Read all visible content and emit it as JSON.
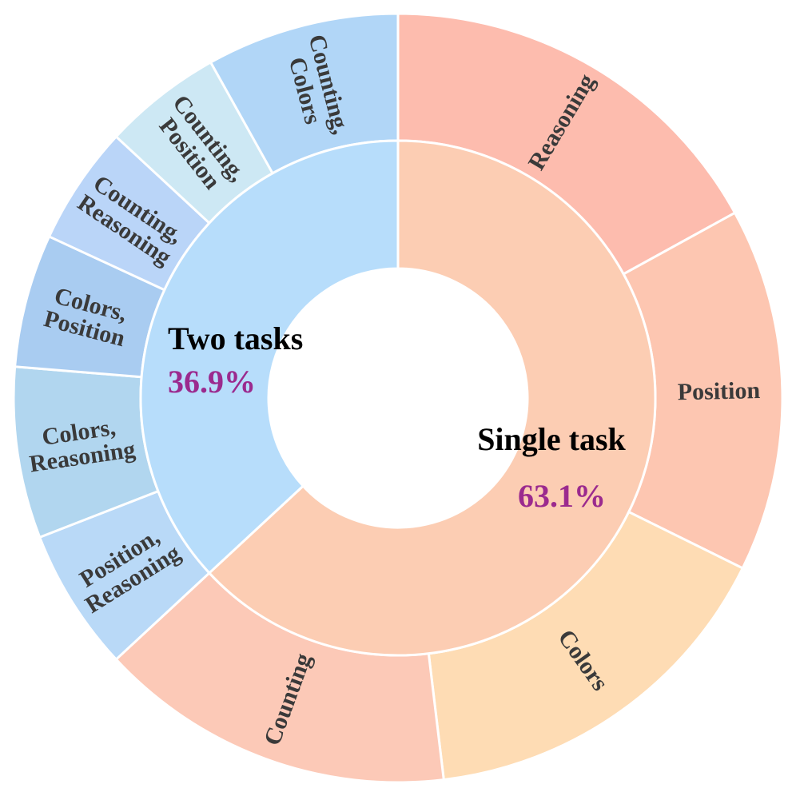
{
  "chart_data": {
    "type": "sunburst",
    "inner": [
      {
        "name": "Single task",
        "percent_label": "63.1%",
        "value": 63.1,
        "color": "#FCCDB3"
      },
      {
        "name": "Two tasks",
        "percent_label": "36.9%",
        "value": 36.9,
        "color": "#B7DDFB"
      }
    ],
    "outer": [
      {
        "parent": "Single task",
        "lines": [
          "Reasoning"
        ],
        "value": 17.0,
        "color": "#FDBCAE"
      },
      {
        "parent": "Single task",
        "lines": [
          "Position"
        ],
        "value": 15.3,
        "color": "#FDC6B1"
      },
      {
        "parent": "Single task",
        "lines": [
          "Colors"
        ],
        "value": 15.8,
        "color": "#FEDCB4"
      },
      {
        "parent": "Single task",
        "lines": [
          "Counting"
        ],
        "value": 15.0,
        "color": "#FCC9B7"
      },
      {
        "parent": "Two tasks",
        "lines": [
          "Position,",
          "Reasoning"
        ],
        "value": 6.0,
        "color": "#B9D9F7"
      },
      {
        "parent": "Two tasks",
        "lines": [
          "Colors,",
          "Reasoning"
        ],
        "value": 7.2,
        "color": "#B1D6EF"
      },
      {
        "parent": "Two tasks",
        "lines": [
          "Colors,",
          "Position"
        ],
        "value": 5.6,
        "color": "#A9CCF1"
      },
      {
        "parent": "Two tasks",
        "lines": [
          "Counting,",
          "Reasoning"
        ],
        "value": 5.0,
        "color": "#BAD5F8"
      },
      {
        "parent": "Two tasks",
        "lines": [
          "Counting,",
          "Position"
        ],
        "value": 5.0,
        "color": "#CDE8F4"
      },
      {
        "parent": "Two tasks",
        "lines": [
          "Counting,",
          "Colors"
        ],
        "value": 8.1,
        "color": "#B1D6F7"
      }
    ],
    "percent_color": "#9B2A8E",
    "label_color": "#3a3a3a",
    "edge_color": "#FFFFFF"
  }
}
